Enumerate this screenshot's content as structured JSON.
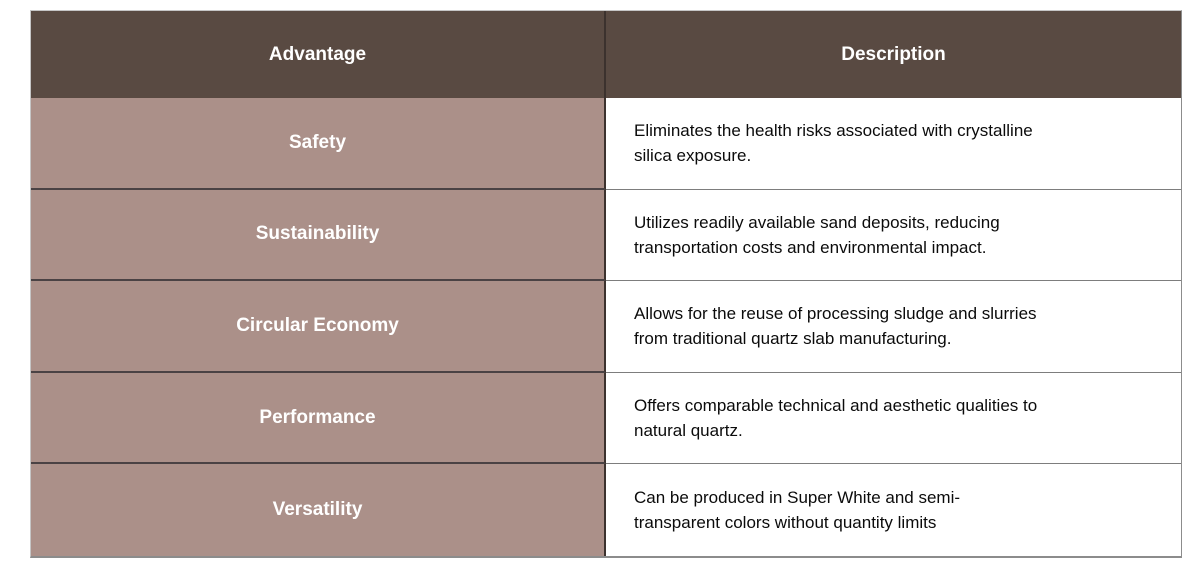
{
  "theme": {
    "page_bg": "#ffffff",
    "header_bg": "#594a42",
    "header_text": "#ffffff",
    "advantage_bg": "#ab9089",
    "advantage_text": "#ffffff",
    "description_bg": "#ffffff",
    "description_text": "#0b0b0b",
    "column_divider": "#3c322e",
    "advantage_row_divider": "#4a4244",
    "description_row_divider": "#7d7d7d",
    "outer_border": "#8c8c8c",
    "outer_border_light": "#c6c6c6"
  },
  "table": {
    "header": {
      "advantage": "Advantage",
      "description": "Description"
    },
    "rows": [
      {
        "advantage": "Safety",
        "description": "Eliminates the health risks associated with crystalline\nsilica exposure."
      },
      {
        "advantage": "Sustainability",
        "description": "Utilizes readily available sand deposits, reducing\ntransportation costs and environmental impact."
      },
      {
        "advantage": "Circular Economy",
        "description": "Allows for the reuse of processing sludge and slurries\nfrom traditional quartz slab manufacturing."
      },
      {
        "advantage": "Performance",
        "description": "Offers comparable technical and aesthetic qualities to\nnatural quartz."
      },
      {
        "advantage": "Versatility",
        "description": "Can be produced in Super White and semi-\ntransparent colors without quantity limits"
      }
    ]
  }
}
